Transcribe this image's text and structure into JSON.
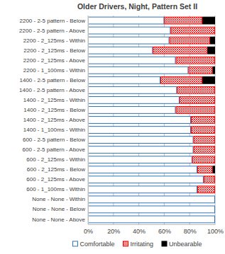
{
  "chart_data": {
    "type": "bar",
    "title": "Older Drivers, Night, Pattern Set II",
    "orientation": "horizontal",
    "stacked": true,
    "legend": "bottom",
    "grid": true,
    "categories": [
      "2200 - 2-5 pattern - Below",
      "2200 - 2-5 pattern - Above",
      "2200 - 2_125ms - Within",
      "2200 - 2_125ms - Below",
      "2200 - 2_125ms - Above",
      "2200 - 1_100ms - Within",
      "1400 - 2-5 pattern - Below",
      "1400 - 2-5 pattern - Above",
      "1400 - 2_125ms - Within",
      "1400 - 2_125ms - Below",
      "1400 - 2_125ms - Above",
      "1400 - 1_100ms - Within",
      "600 - 2-5 pattern - Below",
      "600 - 2-5 pattern - Above",
      "600 - 2_125ms - Within",
      "600 - 2_125ms - Below",
      "600 - 2_125ms - Above",
      "600 - 1_100ms - Within",
      "None - None - Within",
      "None - None - Below",
      "None - None - Above"
    ],
    "series": [
      {
        "name": "Comfortable",
        "color": "#2e75b6",
        "values": [
          60,
          65,
          64,
          51,
          69,
          79,
          57,
          70,
          72,
          69,
          81,
          81,
          83,
          83,
          82,
          86,
          91,
          86,
          100,
          100,
          100
        ]
      },
      {
        "name": "Irritating",
        "color": "#ff0000",
        "values": [
          30,
          35,
          32,
          43,
          31,
          19,
          33,
          30,
          28,
          31,
          19,
          19,
          17,
          17,
          18,
          12,
          9,
          14,
          0,
          0,
          0
        ]
      },
      {
        "name": "Unbearable",
        "color": "#000000",
        "values": [
          10,
          0,
          4,
          6,
          0,
          2,
          10,
          0,
          0,
          0,
          0,
          0,
          0,
          0,
          0,
          2,
          0,
          0,
          0,
          0,
          0
        ]
      }
    ],
    "xlim": [
      0,
      100
    ],
    "xticks": [
      {
        "value": 0,
        "label": "0%"
      },
      {
        "value": 20,
        "label": "20%"
      },
      {
        "value": 40,
        "label": "40%"
      },
      {
        "value": 60,
        "label": "60%"
      },
      {
        "value": 80,
        "label": "80%"
      },
      {
        "value": 100,
        "label": "100%"
      }
    ]
  }
}
